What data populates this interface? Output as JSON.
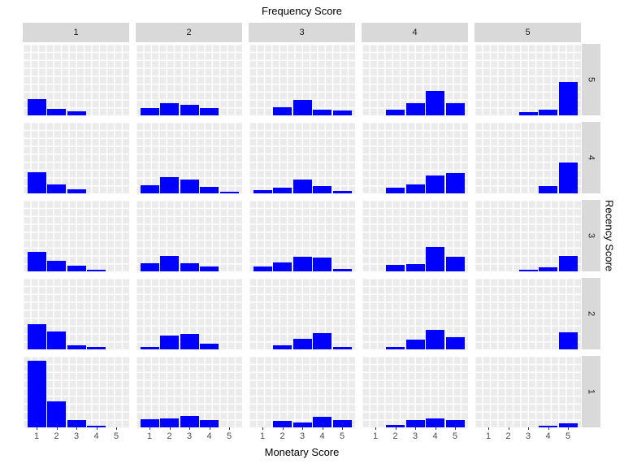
{
  "title": "Frequency Score",
  "axes": {
    "x_title": "Monetary Score",
    "y_title": "Recency Score",
    "x_tick_labels": [
      "1",
      "2",
      "3",
      "4",
      "5"
    ]
  },
  "facets": {
    "col_title": "Frequency Score",
    "row_title": "Recency Score",
    "col_labels": [
      "1",
      "2",
      "3",
      "4",
      "5"
    ],
    "row_labels": [
      "5",
      "4",
      "3",
      "2",
      "1"
    ]
  },
  "colors": {
    "bar": "#0000ff",
    "panel_bg": "#ebebeb",
    "grid_line": "#ffffff",
    "strip_bg": "#d9d9d9",
    "axis_text": "#4d4d4d",
    "title_text": "#000000"
  },
  "chart_data": {
    "type": "bar",
    "title": "Frequency Score",
    "xlabel": "Monetary Score",
    "ylabel": "Recency Score",
    "x": [
      1,
      2,
      3,
      4,
      5
    ],
    "grid": true,
    "legend": false,
    "value_unit": "relative bar height, percent of panel height (no y tick labels shown)",
    "facet_layout": {
      "columns_variable": "Frequency Score",
      "rows_variable": "Recency Score",
      "col_order": [
        "1",
        "2",
        "3",
        "4",
        "5"
      ],
      "row_order_top_to_bottom": [
        "5",
        "4",
        "3",
        "2",
        "1"
      ]
    },
    "panels": [
      {
        "recency": "5",
        "frequency": "1",
        "heights_pct": [
          23,
          9,
          6,
          0,
          0
        ]
      },
      {
        "recency": "5",
        "frequency": "2",
        "heights_pct": [
          10,
          17,
          15,
          10,
          0
        ]
      },
      {
        "recency": "5",
        "frequency": "3",
        "heights_pct": [
          0,
          11,
          22,
          8,
          7
        ]
      },
      {
        "recency": "5",
        "frequency": "4",
        "heights_pct": [
          0,
          8,
          17,
          34,
          17
        ]
      },
      {
        "recency": "5",
        "frequency": "5",
        "heights_pct": [
          0,
          0,
          5,
          8,
          47
        ]
      },
      {
        "recency": "4",
        "frequency": "1",
        "heights_pct": [
          30,
          13,
          6,
          0,
          0
        ]
      },
      {
        "recency": "4",
        "frequency": "2",
        "heights_pct": [
          11,
          23,
          19,
          9,
          2
        ]
      },
      {
        "recency": "4",
        "frequency": "3",
        "heights_pct": [
          5,
          8,
          19,
          10,
          3
        ]
      },
      {
        "recency": "4",
        "frequency": "4",
        "heights_pct": [
          0,
          8,
          13,
          25,
          28
        ]
      },
      {
        "recency": "4",
        "frequency": "5",
        "heights_pct": [
          0,
          0,
          0,
          10,
          43
        ]
      },
      {
        "recency": "3",
        "frequency": "1",
        "heights_pct": [
          27,
          15,
          8,
          2,
          0
        ]
      },
      {
        "recency": "3",
        "frequency": "2",
        "heights_pct": [
          11,
          22,
          11,
          7,
          0
        ]
      },
      {
        "recency": "3",
        "frequency": "3",
        "heights_pct": [
          7,
          13,
          20,
          19,
          3
        ]
      },
      {
        "recency": "3",
        "frequency": "4",
        "heights_pct": [
          0,
          9,
          10,
          34,
          20
        ]
      },
      {
        "recency": "3",
        "frequency": "5",
        "heights_pct": [
          0,
          0,
          2,
          6,
          22
        ]
      },
      {
        "recency": "2",
        "frequency": "1",
        "heights_pct": [
          35,
          25,
          6,
          3,
          0
        ]
      },
      {
        "recency": "2",
        "frequency": "2",
        "heights_pct": [
          3,
          19,
          22,
          8,
          0
        ]
      },
      {
        "recency": "2",
        "frequency": "3",
        "heights_pct": [
          0,
          6,
          15,
          23,
          3
        ]
      },
      {
        "recency": "2",
        "frequency": "4",
        "heights_pct": [
          0,
          3,
          14,
          27,
          17
        ]
      },
      {
        "recency": "2",
        "frequency": "5",
        "heights_pct": [
          0,
          0,
          0,
          0,
          24
        ]
      },
      {
        "recency": "1",
        "frequency": "1",
        "heights_pct": [
          93,
          36,
          10,
          2,
          0
        ]
      },
      {
        "recency": "1",
        "frequency": "2",
        "heights_pct": [
          11,
          13,
          16,
          10,
          0
        ]
      },
      {
        "recency": "1",
        "frequency": "3",
        "heights_pct": [
          0,
          9,
          7,
          15,
          10
        ]
      },
      {
        "recency": "1",
        "frequency": "4",
        "heights_pct": [
          0,
          3,
          10,
          13,
          10
        ]
      },
      {
        "recency": "1",
        "frequency": "5",
        "heights_pct": [
          0,
          0,
          0,
          2,
          6
        ]
      }
    ]
  }
}
